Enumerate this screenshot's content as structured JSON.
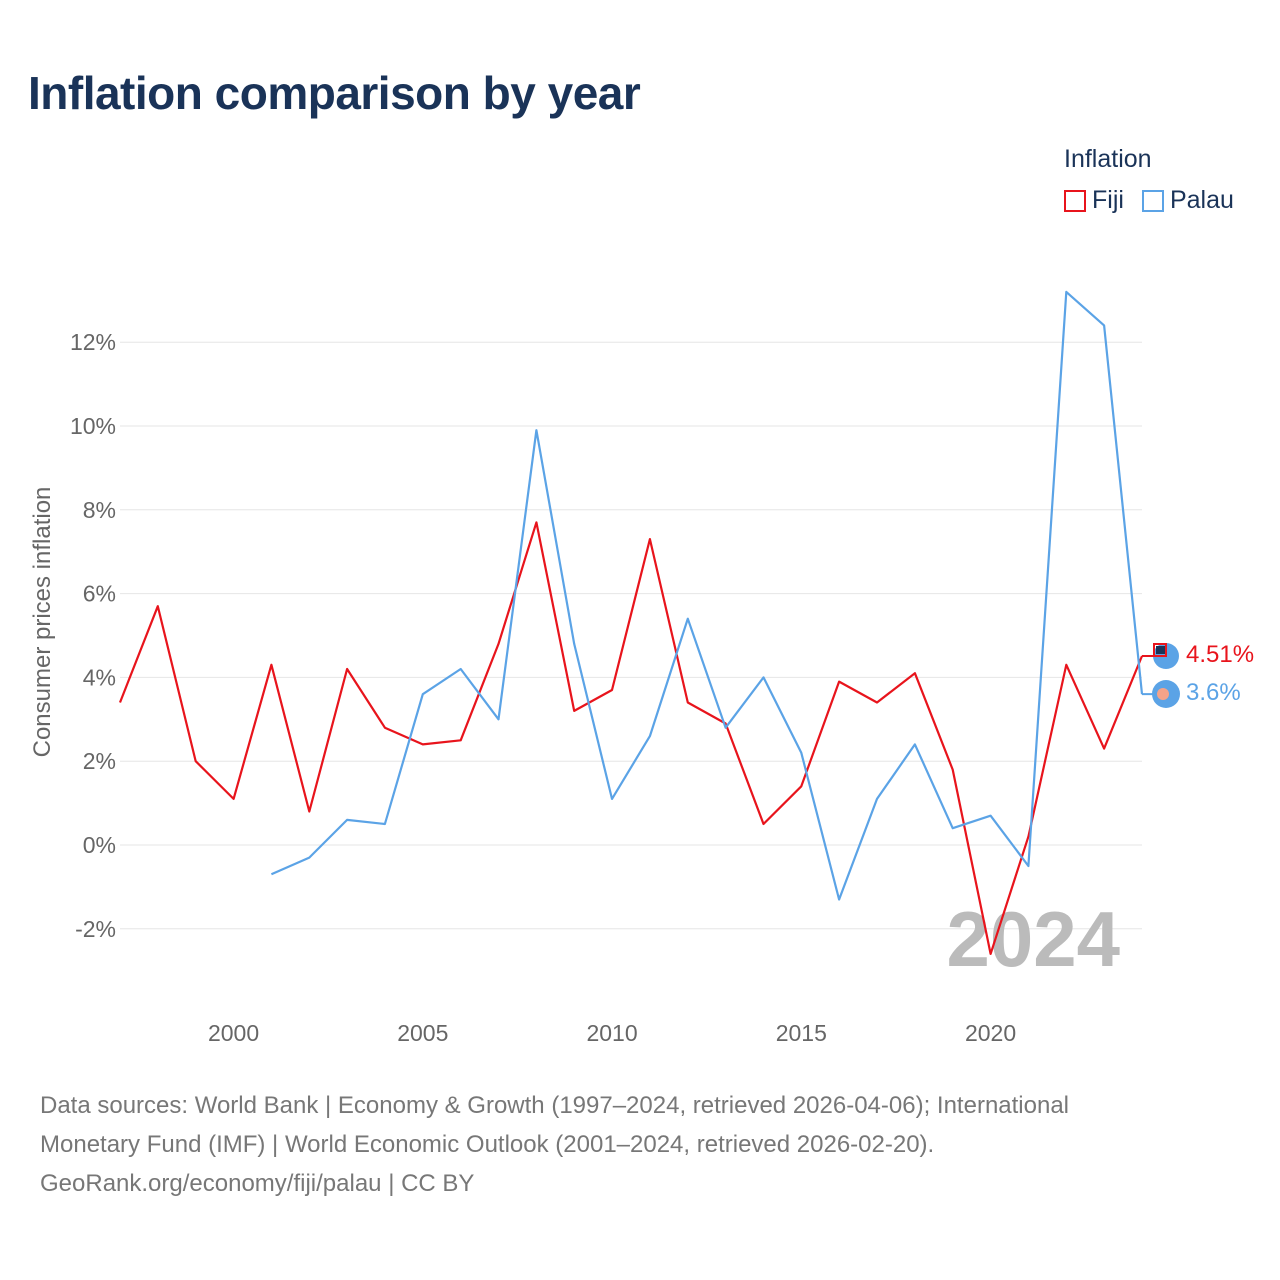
{
  "title": "Inflation comparison by year",
  "legend": {
    "title": "Inflation",
    "items": [
      {
        "label": "Fiji",
        "color": "#e8141c"
      },
      {
        "label": "Palau",
        "color": "#5ba3e6"
      }
    ]
  },
  "footer": {
    "line1": "Data sources: World Bank | Economy & Growth (1997–2024, retrieved 2026-04-06); International",
    "line2": "Monetary Fund (IMF) | World Economic Outlook (2001–2024, retrieved 2026-02-20).",
    "line3": "GeoRank.org/economy/fiji/palau | CC BY"
  },
  "chart_data": {
    "type": "line",
    "title": "Inflation comparison by year",
    "xlabel": "",
    "ylabel": "Consumer prices inflation",
    "xlim": [
      1997,
      2024
    ],
    "ylim": [
      -3.5,
      14
    ],
    "xticks": [
      2000,
      2005,
      2010,
      2015,
      2020
    ],
    "xtick_labels": [
      "2000",
      "2005",
      "2010",
      "2015",
      "2020"
    ],
    "yticks": [
      -2,
      0,
      2,
      4,
      6,
      8,
      10,
      12
    ],
    "ytick_labels": [
      "-2%",
      "0%",
      "2%",
      "4%",
      "6%",
      "8%",
      "10%",
      "12%"
    ],
    "grid": true,
    "legend_position": "top-right",
    "year_watermark": "2024",
    "series": [
      {
        "name": "Fiji",
        "color": "#e8141c",
        "x": [
          1997,
          1998,
          1999,
          2000,
          2001,
          2002,
          2003,
          2004,
          2005,
          2006,
          2007,
          2008,
          2009,
          2010,
          2011,
          2012,
          2013,
          2014,
          2015,
          2016,
          2017,
          2018,
          2019,
          2020,
          2021,
          2022,
          2023,
          2024
        ],
        "values": [
          3.4,
          5.7,
          2.0,
          1.1,
          4.3,
          0.8,
          4.2,
          2.8,
          2.4,
          2.5,
          4.8,
          7.7,
          3.2,
          3.7,
          7.3,
          3.4,
          2.9,
          0.5,
          1.4,
          3.9,
          3.4,
          4.1,
          1.8,
          -2.6,
          0.2,
          4.3,
          2.3,
          4.51
        ],
        "end_label": "4.51%"
      },
      {
        "name": "Palau",
        "color": "#5ba3e6",
        "x": [
          2001,
          2002,
          2003,
          2004,
          2005,
          2006,
          2007,
          2008,
          2009,
          2010,
          2011,
          2012,
          2013,
          2014,
          2015,
          2016,
          2017,
          2018,
          2019,
          2020,
          2021,
          2022,
          2023,
          2024
        ],
        "values": [
          -0.7,
          -0.3,
          0.6,
          0.5,
          3.6,
          4.2,
          3.0,
          9.9,
          4.8,
          1.1,
          2.6,
          5.4,
          2.8,
          4.0,
          2.2,
          -1.3,
          1.1,
          2.4,
          0.4,
          0.7,
          -0.5,
          13.2,
          12.4,
          3.6
        ],
        "end_label": "3.6%"
      }
    ]
  }
}
